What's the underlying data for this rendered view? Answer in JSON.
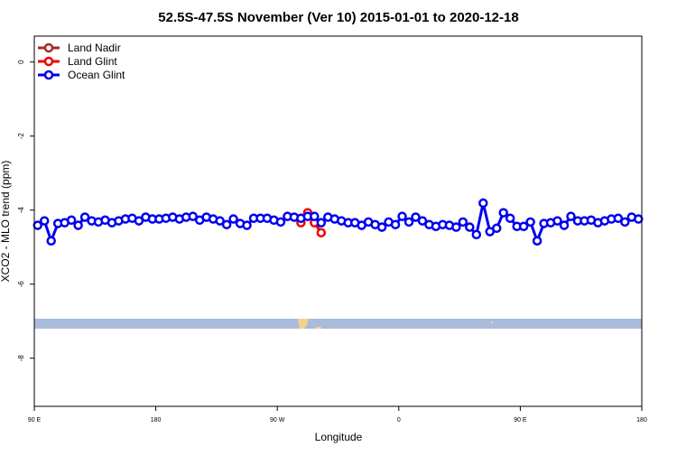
{
  "chart_data": {
    "type": "line",
    "title": "52.5S-47.5S November (Ver 10)   2015-01-01 to 2020-12-18",
    "x_label": "Longitude",
    "y_label": "XCO2 - MLO trend (ppm)",
    "xlim": [
      90,
      540
    ],
    "ylim": [
      -9.3,
      0.7
    ],
    "xticks": [
      {
        "value": 90,
        "label": "90 E"
      },
      180,
      {
        "value": 270,
        "label": "90 W"
      },
      {
        "value": 360,
        "label": "0"
      },
      {
        "value": 450,
        "label": "90 E"
      },
      {
        "value": 540,
        "label": "180"
      }
    ],
    "yticks": [
      0,
      -2,
      -4,
      -6,
      -8
    ],
    "legend": "top-left",
    "series": [
      {
        "name": "Land Nadir",
        "color": "#a52a2a",
        "x": [],
        "values": []
      },
      {
        "name": "Land Glint",
        "color": "#ee0000",
        "x": [
          287.5,
          292.5,
          297.5,
          302.5
        ],
        "values": [
          -4.34,
          -4.07,
          -4.34,
          -4.61
        ]
      },
      {
        "name": "Ocean Glint",
        "color": "#0000ee",
        "x": [
          92.5,
          97.5,
          102.5,
          107.5,
          112.5,
          117.5,
          122.5,
          127.5,
          132.5,
          137.5,
          142.5,
          147.5,
          152.5,
          157.5,
          162.5,
          167.5,
          172.5,
          177.5,
          182.5,
          187.5,
          192.5,
          197.5,
          202.5,
          207.5,
          212.5,
          217.5,
          222.5,
          227.5,
          232.5,
          237.5,
          242.5,
          247.5,
          252.5,
          257.5,
          262.5,
          267.5,
          272.5,
          277.5,
          282.5,
          287.5,
          292.5,
          297.5,
          302.5,
          307.5,
          312.5,
          317.5,
          322.5,
          327.5,
          332.5,
          337.5,
          342.5,
          347.5,
          352.5,
          357.5,
          362.5,
          367.5,
          372.5,
          377.5,
          382.5,
          387.5,
          392.5,
          397.5,
          402.5,
          407.5,
          412.5,
          417.5,
          422.5,
          427.5,
          432.5,
          437.5,
          442.5,
          447.5,
          452.5,
          457.5,
          462.5,
          467.5,
          472.5,
          477.5,
          482.5,
          487.5,
          492.5,
          497.5,
          502.5,
          507.5,
          512.5,
          517.5,
          522.5,
          527.5,
          532.5,
          537.5
        ],
        "values": [
          -4.41,
          -4.29,
          -4.83,
          -4.36,
          -4.34,
          -4.27,
          -4.41,
          -4.19,
          -4.29,
          -4.32,
          -4.27,
          -4.34,
          -4.29,
          -4.24,
          -4.22,
          -4.29,
          -4.19,
          -4.24,
          -4.24,
          -4.22,
          -4.19,
          -4.24,
          -4.19,
          -4.17,
          -4.27,
          -4.19,
          -4.24,
          -4.29,
          -4.39,
          -4.24,
          -4.36,
          -4.41,
          -4.22,
          -4.22,
          -4.22,
          -4.27,
          -4.32,
          -4.17,
          -4.19,
          -4.22,
          -4.17,
          -4.17,
          -4.34,
          -4.19,
          -4.24,
          -4.29,
          -4.34,
          -4.34,
          -4.41,
          -4.32,
          -4.39,
          -4.46,
          -4.32,
          -4.39,
          -4.17,
          -4.32,
          -4.19,
          -4.29,
          -4.39,
          -4.44,
          -4.39,
          -4.41,
          -4.46,
          -4.32,
          -4.46,
          -4.66,
          -3.81,
          -4.58,
          -4.49,
          -4.07,
          -4.22,
          -4.44,
          -4.44,
          -4.32,
          -4.83,
          -4.36,
          -4.34,
          -4.29,
          -4.41,
          -4.17,
          -4.29,
          -4.29,
          -4.27,
          -4.34,
          -4.29,
          -4.24,
          -4.22,
          -4.32,
          -4.19,
          -4.24
        ]
      }
    ]
  }
}
